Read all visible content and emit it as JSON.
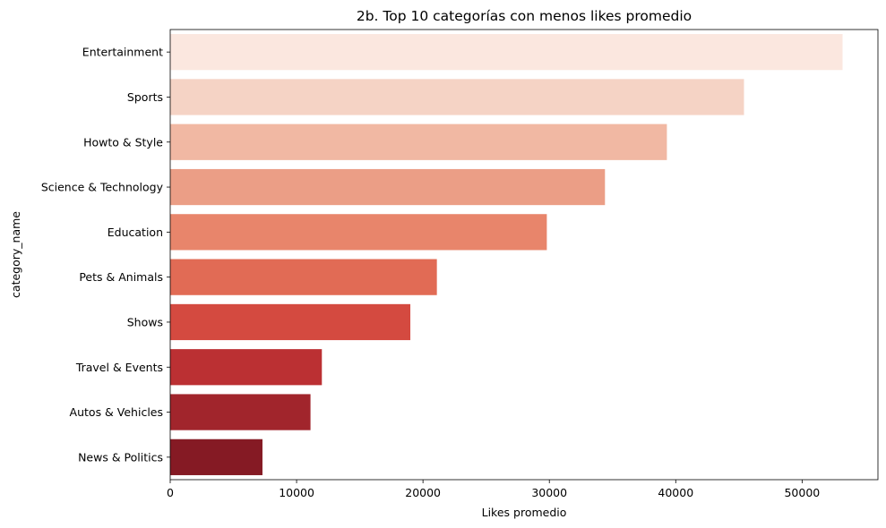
{
  "chart_data": {
    "type": "bar",
    "orientation": "horizontal",
    "title": "2b. Top 10 categorías con menos likes promedio",
    "xlabel": "Likes promedio",
    "ylabel": "category_name",
    "categories": [
      "Entertainment",
      "Sports",
      "Howto & Style",
      "Science & Technology",
      "Education",
      "Pets & Animals",
      "Shows",
      "Travel & Events",
      "Autos & Vehicles",
      "News & Politics"
    ],
    "values": [
      53200,
      45400,
      39300,
      34400,
      29800,
      21100,
      19000,
      12000,
      11100,
      7300
    ],
    "colors": [
      "#fbe7df",
      "#f5d3c5",
      "#f1b8a3",
      "#eb9e86",
      "#e8856b",
      "#e16b55",
      "#d44a40",
      "#bb3033",
      "#a1252c",
      "#851a24"
    ],
    "xlim": [
      0,
      56000
    ],
    "xticks": [
      0,
      10000,
      20000,
      30000,
      40000,
      50000
    ],
    "xtick_labels": [
      "0",
      "10000",
      "20000",
      "30000",
      "40000",
      "50000"
    ],
    "grid": false,
    "legend": "none"
  }
}
